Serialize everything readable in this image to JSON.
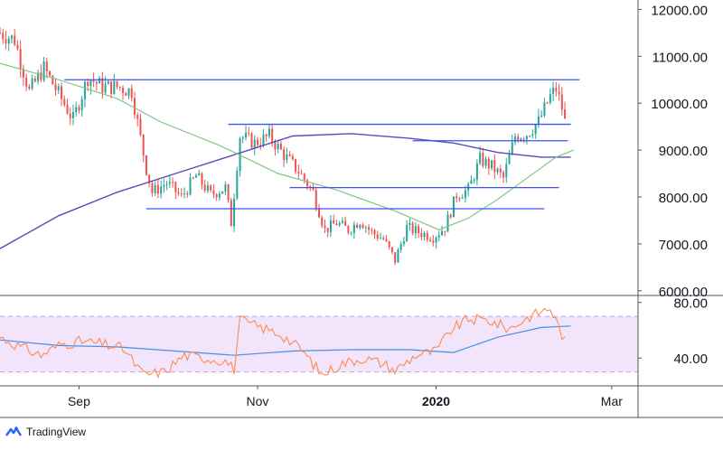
{
  "brand": {
    "name": "TradingView",
    "icon": "tradingview-logo-icon"
  },
  "colors": {
    "candle_up": "#26a69a",
    "candle_down": "#ef5350",
    "sma_long": "#5b4ab7",
    "sma_short": "#81c784",
    "levels": "#3f51f5",
    "rsi_line": "#ff8a50",
    "rsi_ma": "#4a90e2",
    "rsi_band": "#f1e4fb",
    "rsi_band_border": "#c9a0d9",
    "axis_text": "#131722",
    "axis_line": "#555555"
  },
  "chart_data": {
    "type": "candlestick",
    "panes": [
      {
        "name": "price",
        "ylim": [
          5900,
          12200
        ],
        "yticks": [
          "6000.00",
          "7000.00",
          "8000.00",
          "9000.00",
          "10000.00",
          "11000.00",
          "12000.00"
        ],
        "candles_start": "2019-08-05",
        "candles_end": "2020-02-14",
        "close_path": [
          [
            "2019-08-05",
            11500
          ],
          [
            "2019-08-10",
            11350
          ],
          [
            "2019-08-15",
            10250
          ],
          [
            "2019-08-20",
            10750
          ],
          [
            "2019-08-25",
            10200
          ],
          [
            "2019-08-30",
            9650
          ],
          [
            "2019-09-04",
            10550
          ],
          [
            "2019-09-09",
            10350
          ],
          [
            "2019-09-14",
            10350
          ],
          [
            "2019-09-19",
            10250
          ],
          [
            "2019-09-24",
            8600
          ],
          [
            "2019-09-26",
            8100
          ],
          [
            "2019-10-01",
            8300
          ],
          [
            "2019-10-06",
            8000
          ],
          [
            "2019-10-11",
            8450
          ],
          [
            "2019-10-16",
            8050
          ],
          [
            "2019-10-21",
            8200
          ],
          [
            "2019-10-23",
            7450
          ],
          [
            "2019-10-25",
            8700
          ],
          [
            "2019-10-26",
            9300
          ],
          [
            "2019-10-31",
            9150
          ],
          [
            "2019-11-05",
            9300
          ],
          [
            "2019-11-10",
            8900
          ],
          [
            "2019-11-15",
            8550
          ],
          [
            "2019-11-20",
            8100
          ],
          [
            "2019-11-24",
            7300
          ],
          [
            "2019-11-28",
            7450
          ],
          [
            "2019-12-02",
            7300
          ],
          [
            "2019-12-06",
            7500
          ],
          [
            "2019-12-10",
            7250
          ],
          [
            "2019-12-14",
            7100
          ],
          [
            "2019-12-18",
            6650
          ],
          [
            "2019-12-22",
            7350
          ],
          [
            "2019-12-26",
            7250
          ],
          [
            "2019-12-31",
            7150
          ],
          [
            "2020-01-04",
            7350
          ],
          [
            "2020-01-08",
            8050
          ],
          [
            "2020-01-12",
            8150
          ],
          [
            "2020-01-16",
            8800
          ],
          [
            "2020-01-20",
            8650
          ],
          [
            "2020-01-24",
            8400
          ],
          [
            "2020-01-28",
            9300
          ],
          [
            "2020-02-01",
            9350
          ],
          [
            "2020-02-05",
            9600
          ],
          [
            "2020-02-09",
            10150
          ],
          [
            "2020-02-11",
            10300
          ],
          [
            "2020-02-13",
            9900
          ],
          [
            "2020-02-14",
            9600
          ]
        ],
        "sma_long": [
          [
            "2019-08-05",
            6900
          ],
          [
            "2019-08-25",
            7600
          ],
          [
            "2019-09-14",
            8100
          ],
          [
            "2019-10-04",
            8500
          ],
          [
            "2019-10-24",
            8900
          ],
          [
            "2019-11-13",
            9300
          ],
          [
            "2019-12-03",
            9350
          ],
          [
            "2019-12-23",
            9250
          ],
          [
            "2020-01-07",
            9150
          ],
          [
            "2020-01-22",
            8950
          ],
          [
            "2020-02-06",
            8850
          ],
          [
            "2020-02-16",
            8850
          ]
        ],
        "sma_short": [
          [
            "2019-08-05",
            10850
          ],
          [
            "2019-08-25",
            10500
          ],
          [
            "2019-09-14",
            10100
          ],
          [
            "2019-09-29",
            9600
          ],
          [
            "2019-10-19",
            9100
          ],
          [
            "2019-11-08",
            8500
          ],
          [
            "2019-11-28",
            8150
          ],
          [
            "2019-12-18",
            7700
          ],
          [
            "2020-01-02",
            7300
          ],
          [
            "2020-01-12",
            7550
          ],
          [
            "2020-01-22",
            7950
          ],
          [
            "2020-02-01",
            8400
          ],
          [
            "2020-02-11",
            8850
          ],
          [
            "2020-02-17",
            9000
          ]
        ],
        "horizontal_levels": [
          {
            "value": 10500,
            "from": "2019-08-27",
            "to": "2020-02-19"
          },
          {
            "value": 9550,
            "from": "2019-10-22",
            "to": "2020-02-16"
          },
          {
            "value": 9200,
            "from": "2019-12-24",
            "to": "2020-02-15"
          },
          {
            "value": 8200,
            "from": "2019-11-12",
            "to": "2020-02-12"
          },
          {
            "value": 7750,
            "from": "2019-09-24",
            "to": "2020-02-07"
          }
        ]
      },
      {
        "name": "rsi",
        "ylim": [
          20,
          85
        ],
        "yticks": [
          "40.00",
          "80.00"
        ],
        "band": [
          30,
          70
        ],
        "rsi": [
          [
            "2019-08-05",
            55
          ],
          [
            "2019-08-12",
            48
          ],
          [
            "2019-08-19",
            42
          ],
          [
            "2019-08-26",
            50
          ],
          [
            "2019-09-02",
            52
          ],
          [
            "2019-09-09",
            50
          ],
          [
            "2019-09-16",
            47
          ],
          [
            "2019-09-23",
            28
          ],
          [
            "2019-09-30",
            30
          ],
          [
            "2019-10-07",
            42
          ],
          [
            "2019-10-14",
            40
          ],
          [
            "2019-10-21",
            38
          ],
          [
            "2019-10-24",
            32
          ],
          [
            "2019-10-26",
            67
          ],
          [
            "2019-11-02",
            62
          ],
          [
            "2019-11-09",
            57
          ],
          [
            "2019-11-16",
            46
          ],
          [
            "2019-11-23",
            28
          ],
          [
            "2019-11-30",
            36
          ],
          [
            "2019-12-07",
            40
          ],
          [
            "2019-12-14",
            36
          ],
          [
            "2019-12-18",
            31
          ],
          [
            "2019-12-25",
            42
          ],
          [
            "2020-01-01",
            45
          ],
          [
            "2020-01-06",
            60
          ],
          [
            "2020-01-12",
            68
          ],
          [
            "2020-01-19",
            67
          ],
          [
            "2020-01-26",
            61
          ],
          [
            "2020-02-02",
            70
          ],
          [
            "2020-02-09",
            76
          ],
          [
            "2020-02-12",
            62
          ],
          [
            "2020-02-14",
            52
          ]
        ],
        "rsi_ma": [
          [
            "2019-08-05",
            53
          ],
          [
            "2019-08-25",
            49
          ],
          [
            "2019-09-14",
            48
          ],
          [
            "2019-10-04",
            45
          ],
          [
            "2019-10-24",
            42
          ],
          [
            "2019-11-13",
            45
          ],
          [
            "2019-12-03",
            46
          ],
          [
            "2019-12-23",
            46
          ],
          [
            "2020-01-07",
            44
          ],
          [
            "2020-01-22",
            55
          ],
          [
            "2020-02-06",
            62
          ],
          [
            "2020-02-16",
            63
          ]
        ]
      }
    ],
    "x_axis": {
      "range": [
        "2019-08-05",
        "2020-03-10"
      ],
      "ticks": [
        {
          "label": "Sep",
          "date": "2019-09-01",
          "bold": false
        },
        {
          "label": "Nov",
          "date": "2019-11-01",
          "bold": false
        },
        {
          "label": "2020",
          "date": "2020-01-01",
          "bold": true
        },
        {
          "label": "Mar",
          "date": "2020-03-01",
          "bold": false
        }
      ]
    }
  }
}
